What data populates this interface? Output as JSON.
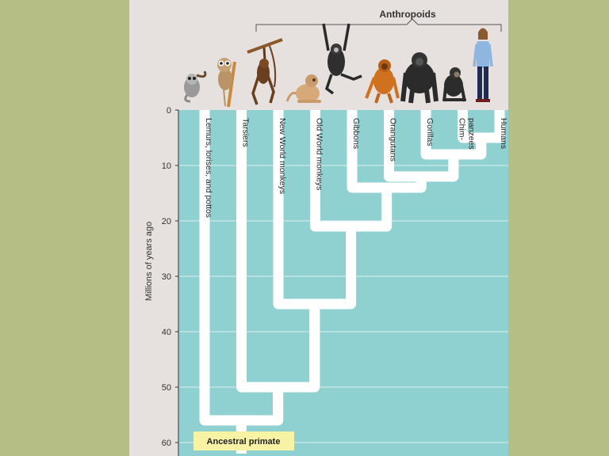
{
  "background_color": "#b5be85",
  "panel_color": "#e6e0df",
  "plot_color": "#8fd0d0",
  "branch_color": "#ffffff",
  "label_box_color": "#f8f3a4",
  "clade_label": "Anthropoids",
  "y_axis_label": "Millions of years ago",
  "y_ticks": [
    "0",
    "10",
    "20",
    "30",
    "40",
    "50",
    "60"
  ],
  "root_label": "Ancestral primate",
  "tree_data": {
    "type": "phylogeny",
    "time_unit": "millions of years ago",
    "taxa": [
      {
        "label": "Lemurs, lorises, and pottos",
        "line1": "Lemurs, lorises, and pottos",
        "line2": "",
        "icon": "lemur-icon"
      },
      {
        "label": "Tarsiers",
        "line1": "Tarsiers",
        "line2": "",
        "icon": "tarsier-icon"
      },
      {
        "label": "New World monkeys",
        "line1": "New World monkeys",
        "line2": "",
        "icon": "new-world-monkey-icon"
      },
      {
        "label": "Old World monkeys",
        "line1": "Old World monkeys",
        "line2": "",
        "icon": "old-world-monkey-icon"
      },
      {
        "label": "Gibbons",
        "line1": "Gibbons",
        "line2": "",
        "icon": "gibbon-icon"
      },
      {
        "label": "Orangutans",
        "line1": "Orangutans",
        "line2": "",
        "icon": "orangutan-icon"
      },
      {
        "label": "Gorillas",
        "line1": "Gorillas",
        "line2": "",
        "icon": "gorilla-icon"
      },
      {
        "label": "Chim- panzees",
        "line1": "Chim-",
        "line2": "panzees",
        "icon": "chimpanzee-icon"
      },
      {
        "label": "Humans",
        "line1": "Humans",
        "line2": "",
        "icon": "human-icon"
      }
    ],
    "divergences_mya": [
      {
        "left": 0,
        "right": 1,
        "mya": 56
      },
      {
        "left": 1,
        "right": 2,
        "mya": 50
      },
      {
        "left": 2,
        "right": 3,
        "mya": 35
      },
      {
        "left": 3,
        "right": 4,
        "mya": 21
      },
      {
        "left": 4,
        "right": 5,
        "mya": 14
      },
      {
        "left": 5,
        "right": 6,
        "mya": 12
      },
      {
        "left": 6,
        "right": 7,
        "mya": 8
      },
      {
        "left": 7,
        "right": 8,
        "mya": 5
      }
    ]
  }
}
